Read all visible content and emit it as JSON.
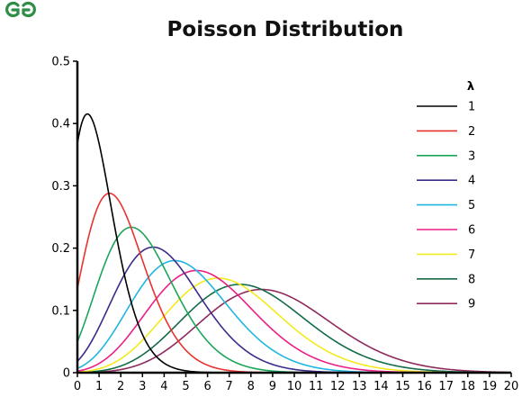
{
  "brand": {
    "logo_icon": "geeksforgeeks-logo-icon",
    "color": "#2f8d46"
  },
  "chart_data": {
    "type": "line",
    "title": "Poisson Distribution",
    "xlabel": "",
    "ylabel": "",
    "xlim": [
      0,
      20
    ],
    "ylim": [
      0,
      0.5
    ],
    "x_ticks": [
      "0",
      "1",
      "2",
      "3",
      "4",
      "5",
      "6",
      "7",
      "8",
      "9",
      "10",
      "11",
      "12",
      "13",
      "14",
      "15",
      "16",
      "17",
      "18",
      "19",
      "20"
    ],
    "y_ticks": [
      "0",
      "0.1",
      "0.2",
      "0.3",
      "0.4",
      "0.5"
    ],
    "grid": false,
    "legend": {
      "title": "λ",
      "placement": "top-right"
    },
    "series": [
      {
        "name": "1",
        "lambda": 1,
        "color": "#000000"
      },
      {
        "name": "2",
        "lambda": 2,
        "color": "#e8332f"
      },
      {
        "name": "3",
        "lambda": 3,
        "color": "#1ba65a"
      },
      {
        "name": "4",
        "lambda": 4,
        "color": "#3d2b8a"
      },
      {
        "name": "5",
        "lambda": 5,
        "color": "#1fb6e0"
      },
      {
        "name": "6",
        "lambda": 6,
        "color": "#ec1f86"
      },
      {
        "name": "7",
        "lambda": 7,
        "color": "#f3ea1d"
      },
      {
        "name": "8",
        "lambda": 8,
        "color": "#136b47"
      },
      {
        "name": "9",
        "lambda": 9,
        "color": "#8e2a5c"
      }
    ]
  }
}
